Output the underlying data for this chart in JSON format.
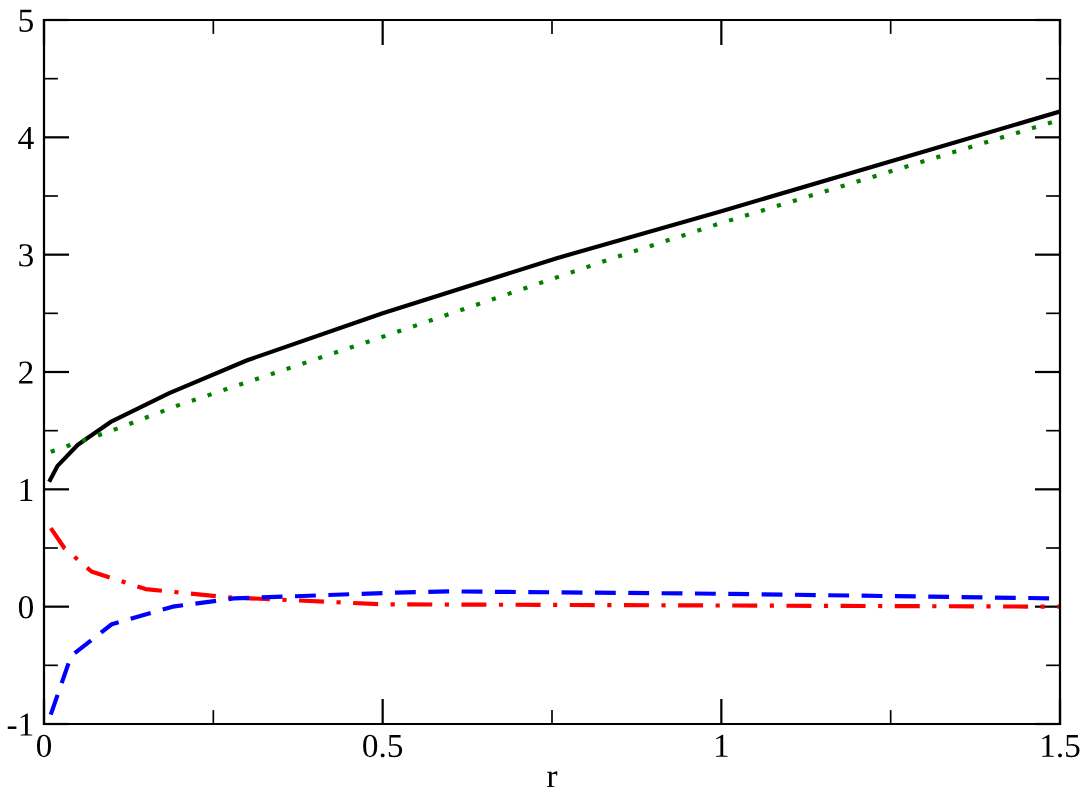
{
  "chart_data": {
    "type": "line",
    "xlabel": "r",
    "xlim": [
      0,
      1.5
    ],
    "ylim": [
      -1,
      5
    ],
    "xticks": [
      0,
      {
        "value": 0.25,
        "label": null
      },
      0.5,
      {
        "value": 0.75,
        "label": null
      },
      1,
      {
        "value": 1.25,
        "label": null
      },
      1.5
    ],
    "yticks": [
      -1,
      {
        "value": -0.5,
        "label": null
      },
      0,
      {
        "value": 0.5,
        "label": null
      },
      1,
      {
        "value": 1.5,
        "label": null
      },
      2,
      {
        "value": 2.5,
        "label": null
      },
      3,
      {
        "value": 3.5,
        "label": null
      },
      4,
      {
        "value": 4.5,
        "label": null
      },
      5
    ],
    "grid": false,
    "legend": false,
    "series": [
      {
        "color": "#000000",
        "line_style": "solid",
        "x": [
          0.009,
          0.02,
          0.05,
          0.1,
          0.185,
          0.3,
          0.5,
          0.757,
          1.0,
          1.5
        ],
        "values": [
          1.08,
          1.2,
          1.38,
          1.58,
          1.82,
          2.1,
          2.5,
          2.97,
          3.37,
          4.22
        ]
      },
      {
        "color": "#008000",
        "line_style": "dotted",
        "x": [
          0.01,
          0.1,
          0.2,
          0.5,
          0.84,
          1.0,
          1.5
        ],
        "values": [
          1.32,
          1.5,
          1.72,
          2.3,
          2.97,
          3.27,
          4.15
        ]
      },
      {
        "color": "#ff0000",
        "line_style": "dashdot",
        "x": [
          0.01,
          0.03,
          0.07,
          0.15,
          0.27,
          0.5,
          1.0,
          1.5
        ],
        "values": [
          0.67,
          0.5,
          0.3,
          0.15,
          0.08,
          0.02,
          0.01,
          0.0
        ]
      },
      {
        "color": "#0000ff",
        "line_style": "dashed",
        "x": [
          0.01,
          0.04,
          0.1,
          0.19,
          0.28,
          0.52,
          0.6,
          1.0,
          1.5
        ],
        "values": [
          -0.92,
          -0.42,
          -0.15,
          0.0,
          0.07,
          0.12,
          0.13,
          0.11,
          0.07
        ]
      }
    ]
  }
}
